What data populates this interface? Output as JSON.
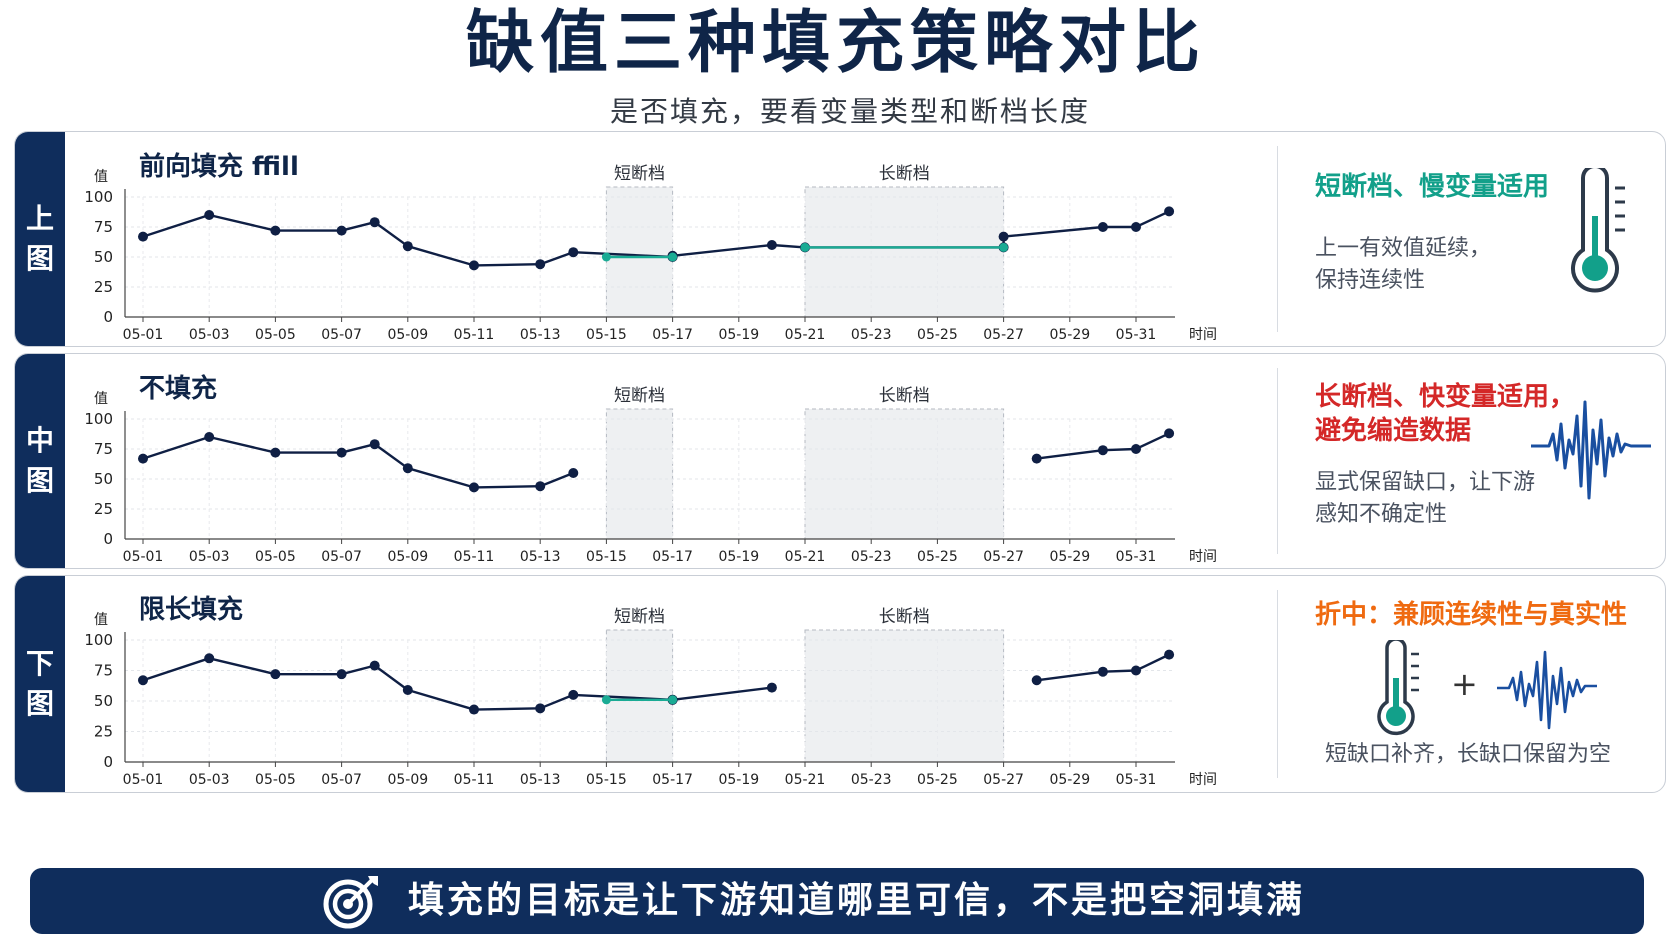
{
  "header": {
    "title": "缺值三种填充策略对比",
    "subtitle": "是否填充，要看变量类型和断档长度"
  },
  "colors": {
    "navy": "#0f2d5c",
    "line": "#0f1f44",
    "fill_line": "#1aab94",
    "gap_shade": "#eef0f2",
    "teal_head": "#12a08a",
    "red_head": "#d42828",
    "orange_head": "#ef6a10"
  },
  "axis": {
    "y_label": "值",
    "x_label": "时间",
    "y_ticks": [
      "100",
      "75",
      "50",
      "25",
      "0"
    ],
    "x_ticks": [
      "05-01",
      "05-03",
      "05-05",
      "05-07",
      "05-09",
      "05-11",
      "05-13",
      "05-15",
      "05-17",
      "05-19",
      "05-21",
      "05-23",
      "05-25",
      "05-27",
      "05-29",
      "05-31"
    ],
    "short_gap_label": "短断档",
    "long_gap_label": "长断档"
  },
  "panels": [
    {
      "side_label": [
        "上",
        "图"
      ],
      "chart_title": "前向填充 ffill",
      "note_head": [
        "短断档、慢变量适用"
      ],
      "note_head_color": "#12a08a",
      "note_body": [
        "上一有效值延续，",
        "保持连续性"
      ],
      "icon": "thermometer-icon"
    },
    {
      "side_label": [
        "中",
        "图"
      ],
      "chart_title": "不填充",
      "note_head": [
        "长断档、快变量适用，",
        "避免编造数据"
      ],
      "note_head_color": "#d42828",
      "note_body": [
        "显式保留缺口，让下游",
        "感知不确定性"
      ],
      "icon": "waveform-icon"
    },
    {
      "side_label": [
        "下",
        "图"
      ],
      "chart_title": "限长填充",
      "note_head": [
        "折中：兼顾连续性与真实性"
      ],
      "note_head_color": "#ef6a10",
      "note_body": [
        "短缺口补齐，长缺口保留为空"
      ],
      "icon": "thermometer-plus-waveform-icon",
      "plus_sign": "+"
    }
  ],
  "footer": {
    "text": "填充的目标是让下游知道哪里可信，不是把空洞填满",
    "icon": "target-icon"
  },
  "chart_data": [
    {
      "type": "line",
      "title": "前向填充 ffill",
      "xlabel": "时间",
      "ylabel": "值",
      "ylim": [
        0,
        100
      ],
      "grid": true,
      "shaded_regions": [
        {
          "label": "短断档",
          "x_start": "05-15",
          "x_end": "05-17"
        },
        {
          "label": "长断档",
          "x_start": "05-21",
          "x_end": "05-27"
        }
      ],
      "series": [
        {
          "role": "observed",
          "points": [
            [
              "05-01",
              67
            ],
            [
              "05-03",
              85
            ],
            [
              "05-05",
              72
            ],
            [
              "05-07",
              72
            ],
            [
              "05-08",
              79
            ],
            [
              "05-09",
              59
            ],
            [
              "05-11",
              43
            ],
            [
              "05-13",
              44
            ],
            [
              "05-14",
              54
            ],
            [
              "05-17",
              50
            ],
            [
              "05-17",
              51
            ],
            [
              "05-20",
              60
            ],
            [
              "05-21",
              58
            ],
            [
              "05-27",
              58
            ],
            [
              "05-27",
              67
            ],
            [
              "05-30",
              75
            ],
            [
              "05-31",
              75
            ],
            [
              "06-01",
              88
            ]
          ]
        },
        {
          "role": "filled",
          "points": [
            [
              "05-15",
              50
            ],
            [
              "05-17",
              50
            ]
          ]
        },
        {
          "role": "filled",
          "points": [
            [
              "05-21",
              58
            ],
            [
              "05-27",
              58
            ]
          ]
        }
      ]
    },
    {
      "type": "line",
      "title": "不填充",
      "xlabel": "时间",
      "ylabel": "值",
      "ylim": [
        0,
        100
      ],
      "grid": true,
      "shaded_regions": [
        {
          "label": "短断档",
          "x_start": "05-15",
          "x_end": "05-17"
        },
        {
          "label": "长断档",
          "x_start": "05-21",
          "x_end": "05-27"
        }
      ],
      "series": [
        {
          "role": "observed",
          "points": [
            [
              "05-01",
              67
            ],
            [
              "05-03",
              85
            ],
            [
              "05-05",
              72
            ],
            [
              "05-07",
              72
            ],
            [
              "05-08",
              79
            ],
            [
              "05-09",
              59
            ],
            [
              "05-11",
              43
            ],
            [
              "05-13",
              44
            ],
            [
              "05-14",
              55
            ]
          ]
        },
        {
          "role": "observed",
          "points": [
            [
              "05-28",
              67
            ],
            [
              "05-30",
              74
            ],
            [
              "05-31",
              75
            ],
            [
              "06-01",
              88
            ]
          ]
        }
      ]
    },
    {
      "type": "line",
      "title": "限长填充",
      "xlabel": "时间",
      "ylabel": "值",
      "ylim": [
        0,
        100
      ],
      "grid": true,
      "shaded_regions": [
        {
          "label": "短断档",
          "x_start": "05-15",
          "x_end": "05-17"
        },
        {
          "label": "长断档",
          "x_start": "05-21",
          "x_end": "05-27"
        }
      ],
      "series": [
        {
          "role": "observed",
          "points": [
            [
              "05-01",
              67
            ],
            [
              "05-03",
              85
            ],
            [
              "05-05",
              72
            ],
            [
              "05-07",
              72
            ],
            [
              "05-08",
              79
            ],
            [
              "05-09",
              59
            ],
            [
              "05-11",
              43
            ],
            [
              "05-13",
              44
            ],
            [
              "05-14",
              55
            ],
            [
              "05-17",
              51
            ],
            [
              "05-17",
              51
            ],
            [
              "05-20",
              61
            ]
          ]
        },
        {
          "role": "filled",
          "points": [
            [
              "05-15",
              51
            ],
            [
              "05-17",
              51
            ]
          ]
        },
        {
          "role": "observed",
          "points": [
            [
              "05-28",
              67
            ],
            [
              "05-30",
              74
            ],
            [
              "05-31",
              75
            ],
            [
              "06-01",
              88
            ]
          ]
        }
      ]
    }
  ]
}
